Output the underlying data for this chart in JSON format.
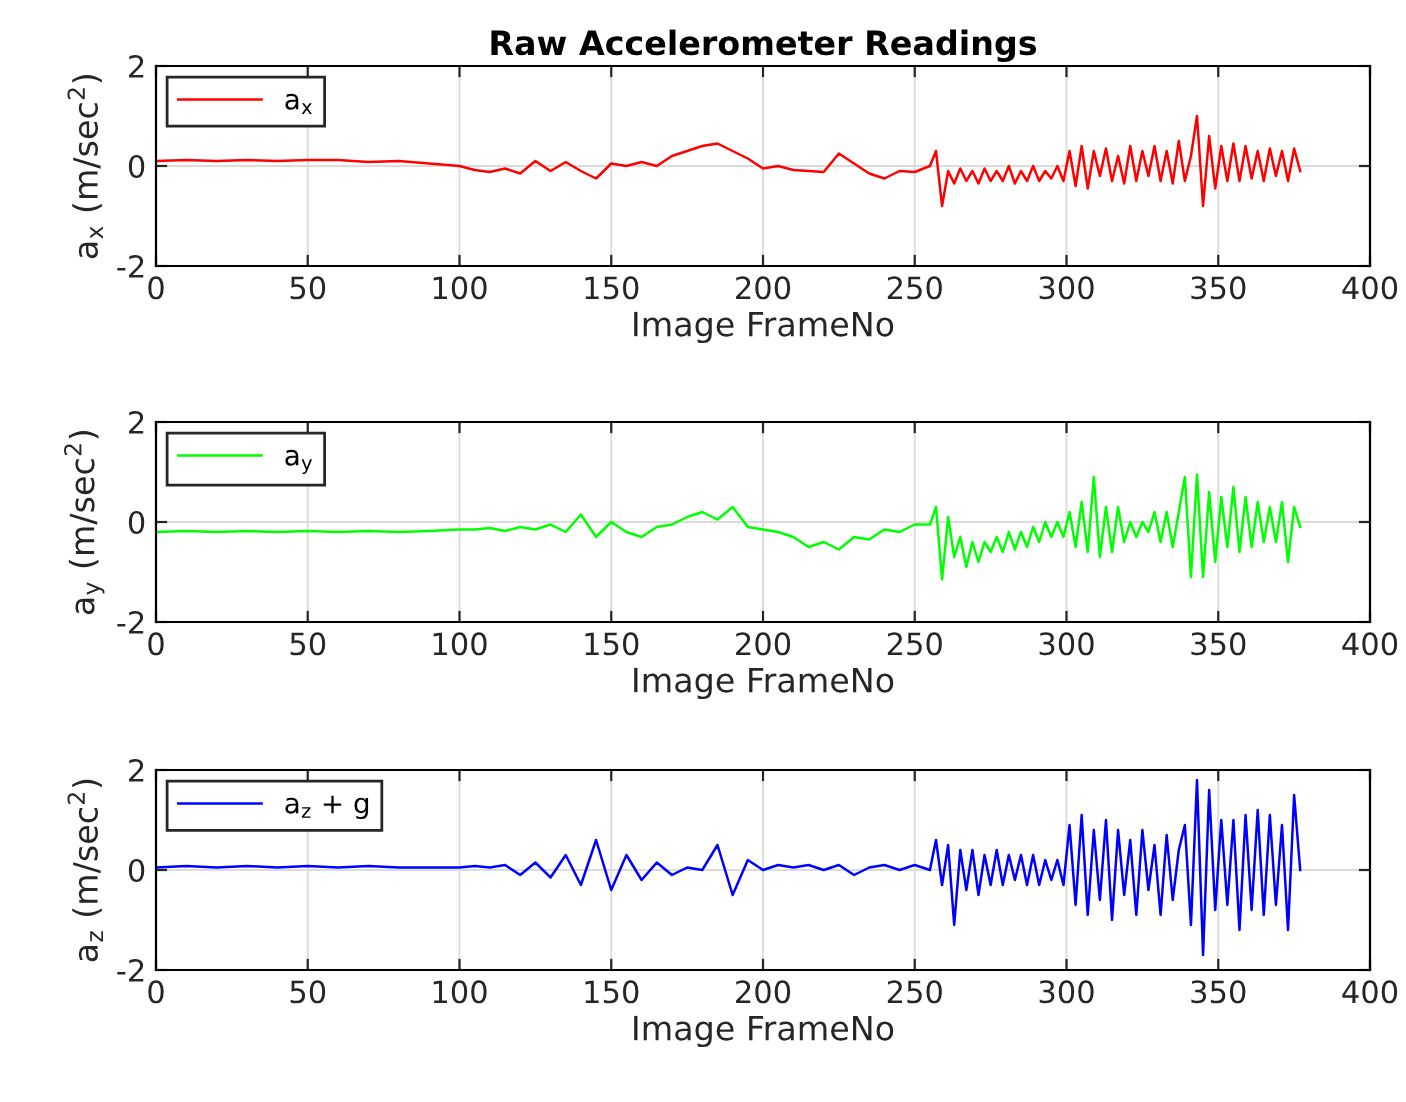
{
  "chart_data": [
    {
      "type": "line",
      "title": "Raw Accelerometer Readings",
      "xlabel": "Image FrameNo",
      "ylabel": "a$_{x}$ (m/sec$^{2}$)",
      "x": [
        0,
        10,
        20,
        30,
        40,
        50,
        60,
        70,
        80,
        90,
        100,
        105,
        110,
        115,
        120,
        125,
        130,
        135,
        140,
        145,
        150,
        155,
        160,
        165,
        170,
        175,
        180,
        185,
        190,
        195,
        200,
        205,
        210,
        215,
        220,
        225,
        230,
        235,
        240,
        245,
        250,
        255,
        257,
        259,
        261,
        263,
        265,
        267,
        269,
        271,
        273,
        275,
        277,
        279,
        281,
        283,
        285,
        287,
        289,
        291,
        293,
        295,
        297,
        299,
        301,
        303,
        305,
        307,
        309,
        311,
        313,
        315,
        317,
        319,
        321,
        323,
        325,
        327,
        329,
        331,
        333,
        335,
        337,
        339,
        341,
        343,
        345,
        347,
        349,
        351,
        353,
        355,
        357,
        359,
        361,
        363,
        365,
        367,
        369,
        371,
        373,
        375,
        377
      ],
      "series": [
        {
          "name": "a$_{x}$",
          "color": "#ff0000",
          "values": [
            0.1,
            0.12,
            0.1,
            0.12,
            0.1,
            0.12,
            0.12,
            0.08,
            0.1,
            0.05,
            0.0,
            -0.08,
            -0.12,
            -0.05,
            -0.15,
            0.1,
            -0.1,
            0.08,
            -0.1,
            -0.25,
            0.05,
            0.0,
            0.08,
            0.0,
            0.2,
            0.3,
            0.4,
            0.45,
            0.3,
            0.15,
            -0.05,
            0.0,
            -0.08,
            -0.1,
            -0.12,
            0.25,
            0.05,
            -0.15,
            -0.25,
            -0.1,
            -0.12,
            0.0,
            0.3,
            -0.8,
            -0.1,
            -0.35,
            -0.05,
            -0.3,
            -0.1,
            -0.35,
            -0.05,
            -0.3,
            -0.1,
            -0.3,
            0.0,
            -0.35,
            -0.1,
            -0.3,
            0.0,
            -0.3,
            -0.1,
            -0.25,
            0.0,
            -0.3,
            0.3,
            -0.4,
            0.4,
            -0.45,
            0.3,
            -0.2,
            0.35,
            -0.3,
            0.2,
            -0.35,
            0.4,
            -0.3,
            0.3,
            -0.2,
            0.4,
            -0.3,
            0.3,
            -0.35,
            0.5,
            -0.3,
            0.2,
            1.0,
            -0.8,
            0.6,
            -0.45,
            0.4,
            -0.3,
            0.45,
            -0.3,
            0.4,
            -0.25,
            0.3,
            -0.3,
            0.35,
            -0.2,
            0.3,
            -0.3,
            0.35,
            -0.1
          ]
        }
      ],
      "xlim": [
        0,
        400
      ],
      "xticks": [
        0,
        50,
        100,
        150,
        200,
        250,
        300,
        350,
        400
      ],
      "ylim": [
        -2,
        2
      ],
      "yticks": [
        -2,
        0,
        2
      ],
      "grid": true,
      "legend": "top left"
    },
    {
      "type": "line",
      "xlabel": "Image FrameNo",
      "ylabel": "a$_{y}$ (m/sec$^{2}$)",
      "x": [
        0,
        10,
        20,
        30,
        40,
        50,
        60,
        70,
        80,
        90,
        100,
        105,
        110,
        115,
        120,
        125,
        130,
        135,
        140,
        145,
        150,
        155,
        160,
        165,
        170,
        175,
        180,
        185,
        190,
        195,
        200,
        205,
        210,
        215,
        220,
        225,
        230,
        235,
        240,
        245,
        250,
        255,
        257,
        259,
        261,
        263,
        265,
        267,
        269,
        271,
        273,
        275,
        277,
        279,
        281,
        283,
        285,
        287,
        289,
        291,
        293,
        295,
        297,
        299,
        301,
        303,
        305,
        307,
        309,
        311,
        313,
        315,
        317,
        319,
        321,
        323,
        325,
        327,
        329,
        331,
        333,
        335,
        337,
        339,
        341,
        343,
        345,
        347,
        349,
        351,
        353,
        355,
        357,
        359,
        361,
        363,
        365,
        367,
        369,
        371,
        373,
        375,
        377
      ],
      "series": [
        {
          "name": "a$_{y}$",
          "color": "#00ff00",
          "values": [
            -0.2,
            -0.18,
            -0.2,
            -0.18,
            -0.2,
            -0.18,
            -0.2,
            -0.18,
            -0.2,
            -0.18,
            -0.15,
            -0.15,
            -0.12,
            -0.18,
            -0.1,
            -0.15,
            -0.05,
            -0.2,
            0.15,
            -0.3,
            0.0,
            -0.2,
            -0.3,
            -0.1,
            -0.05,
            0.1,
            0.2,
            0.05,
            0.3,
            -0.1,
            -0.15,
            -0.2,
            -0.3,
            -0.5,
            -0.4,
            -0.55,
            -0.3,
            -0.35,
            -0.15,
            -0.2,
            -0.05,
            -0.05,
            0.3,
            -1.15,
            0.1,
            -0.7,
            -0.3,
            -0.9,
            -0.4,
            -0.8,
            -0.4,
            -0.6,
            -0.3,
            -0.6,
            -0.2,
            -0.55,
            -0.2,
            -0.5,
            -0.1,
            -0.4,
            0.0,
            -0.3,
            0.0,
            -0.3,
            0.2,
            -0.5,
            0.4,
            -0.6,
            0.9,
            -0.7,
            0.3,
            -0.6,
            0.3,
            -0.4,
            0.0,
            -0.3,
            0.0,
            -0.2,
            0.2,
            -0.4,
            0.2,
            -0.5,
            0.2,
            0.9,
            -1.1,
            0.95,
            -1.1,
            0.6,
            -0.8,
            0.5,
            -0.5,
            0.7,
            -0.6,
            0.5,
            -0.5,
            0.4,
            -0.4,
            0.3,
            -0.4,
            0.4,
            -0.8,
            0.3,
            -0.1
          ]
        }
      ],
      "xlim": [
        0,
        400
      ],
      "xticks": [
        0,
        50,
        100,
        150,
        200,
        250,
        300,
        350,
        400
      ],
      "ylim": [
        -2,
        2
      ],
      "yticks": [
        -2,
        0,
        2
      ],
      "grid": true,
      "legend": "top left"
    },
    {
      "type": "line",
      "xlabel": "Image FrameNo",
      "ylabel": "a$_{z}$ (m/sec$^{2}$)",
      "x": [
        0,
        10,
        20,
        30,
        40,
        50,
        60,
        70,
        80,
        90,
        100,
        105,
        110,
        115,
        120,
        125,
        130,
        135,
        140,
        145,
        150,
        155,
        160,
        165,
        170,
        175,
        180,
        185,
        190,
        195,
        200,
        205,
        210,
        215,
        220,
        225,
        230,
        235,
        240,
        245,
        250,
        255,
        257,
        259,
        261,
        263,
        265,
        267,
        269,
        271,
        273,
        275,
        277,
        279,
        281,
        283,
        285,
        287,
        289,
        291,
        293,
        295,
        297,
        299,
        301,
        303,
        305,
        307,
        309,
        311,
        313,
        315,
        317,
        319,
        321,
        323,
        325,
        327,
        329,
        331,
        333,
        335,
        337,
        339,
        341,
        343,
        345,
        347,
        349,
        351,
        353,
        355,
        357,
        359,
        361,
        363,
        365,
        367,
        369,
        371,
        373,
        375,
        377
      ],
      "series": [
        {
          "name": "a$_{z}$ + g",
          "color": "#0000ff",
          "values": [
            0.05,
            0.08,
            0.05,
            0.08,
            0.05,
            0.08,
            0.05,
            0.08,
            0.05,
            0.05,
            0.05,
            0.08,
            0.05,
            0.1,
            -0.1,
            0.15,
            -0.15,
            0.3,
            -0.3,
            0.6,
            -0.4,
            0.3,
            -0.2,
            0.15,
            -0.1,
            0.05,
            0.0,
            0.5,
            -0.5,
            0.2,
            0.0,
            0.1,
            0.05,
            0.1,
            0.0,
            0.1,
            -0.1,
            0.05,
            0.1,
            0.0,
            0.1,
            0.0,
            0.6,
            -0.3,
            0.5,
            -1.1,
            0.4,
            -0.4,
            0.4,
            -0.5,
            0.3,
            -0.3,
            0.4,
            -0.3,
            0.3,
            -0.2,
            0.3,
            -0.3,
            0.3,
            -0.3,
            0.2,
            -0.2,
            0.2,
            -0.3,
            0.9,
            -0.7,
            1.1,
            -0.9,
            0.8,
            -0.6,
            1.0,
            -1.0,
            0.8,
            -0.5,
            0.6,
            -0.9,
            0.8,
            -0.4,
            0.5,
            -0.9,
            0.7,
            -0.6,
            0.4,
            0.9,
            -1.1,
            1.8,
            -1.7,
            1.6,
            -0.8,
            1.0,
            -0.7,
            1.0,
            -1.2,
            1.1,
            -0.8,
            1.2,
            -0.9,
            1.1,
            -0.7,
            0.9,
            -1.2,
            1.5,
            0.0
          ]
        }
      ],
      "xlim": [
        0,
        400
      ],
      "xticks": [
        0,
        50,
        100,
        150,
        200,
        250,
        300,
        350,
        400
      ],
      "ylim": [
        -2,
        2
      ],
      "yticks": [
        -2,
        0,
        2
      ],
      "grid": true,
      "legend": "top left"
    }
  ]
}
